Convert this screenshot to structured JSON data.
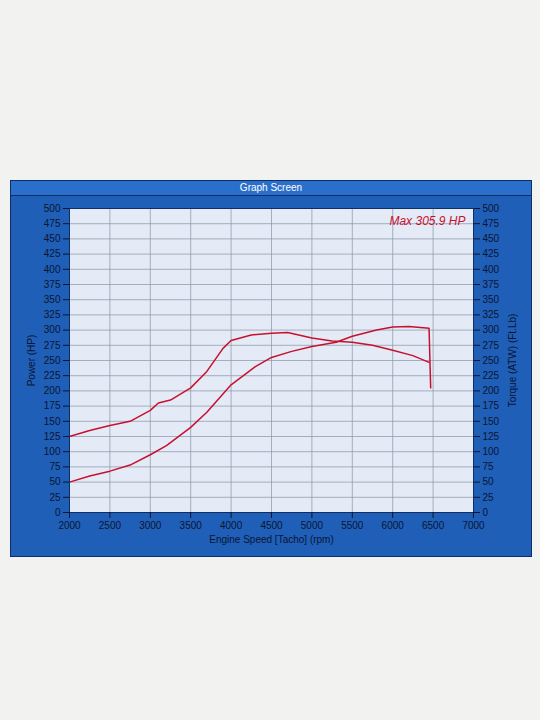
{
  "chart_data": {
    "type": "line",
    "title": "Graph Screen",
    "x_label": "Engine Speed [Tacho] (rpm)",
    "y_label": "Power (HP)",
    "y2_label": "Torque (ATW) (Ft.Lb)",
    "xlim": [
      2000,
      7000
    ],
    "xticks": [
      2000,
      2500,
      3000,
      3500,
      4000,
      4500,
      5000,
      5500,
      6000,
      6500,
      7000
    ],
    "ylim": [
      0,
      500
    ],
    "yticks": [
      0,
      25,
      50,
      75,
      100,
      125,
      150,
      175,
      200,
      225,
      250,
      275,
      300,
      325,
      350,
      375,
      400,
      425,
      450,
      475,
      500
    ],
    "y2lim": [
      0,
      500
    ],
    "y2ticks": [
      0,
      25,
      50,
      75,
      100,
      125,
      150,
      175,
      200,
      225,
      250,
      275,
      300,
      325,
      350,
      375,
      400,
      425,
      450,
      475,
      500
    ],
    "grid": true,
    "annotations": [
      {
        "text": "Max 305.9 HP"
      }
    ],
    "series": [
      {
        "color": "#c8102e",
        "line_style": "solid",
        "x": [
          2000,
          2250,
          2500,
          2750,
          3000,
          3200,
          3500,
          3700,
          4000,
          4300,
          4500,
          4750,
          5000,
          5300,
          5500,
          5800,
          6000,
          6200,
          6450,
          6470
        ],
        "values": [
          50,
          60,
          68,
          78,
          95,
          110,
          140,
          165,
          210,
          240,
          255,
          265,
          273,
          280,
          290,
          300,
          305,
          306,
          303,
          205
        ]
      },
      {
        "color": "#c8102e",
        "line_style": "solid",
        "axis": "y2",
        "x": [
          2000,
          2250,
          2500,
          2750,
          3000,
          3100,
          3250,
          3500,
          3700,
          3900,
          4000,
          4250,
          4500,
          4700,
          5000,
          5250,
          5500,
          5750,
          6000,
          6250,
          6450
        ],
        "values": [
          125,
          135,
          143,
          150,
          168,
          180,
          185,
          205,
          232,
          270,
          283,
          292,
          295,
          296,
          287,
          282,
          280,
          275,
          267,
          258,
          247
        ]
      }
    ]
  }
}
